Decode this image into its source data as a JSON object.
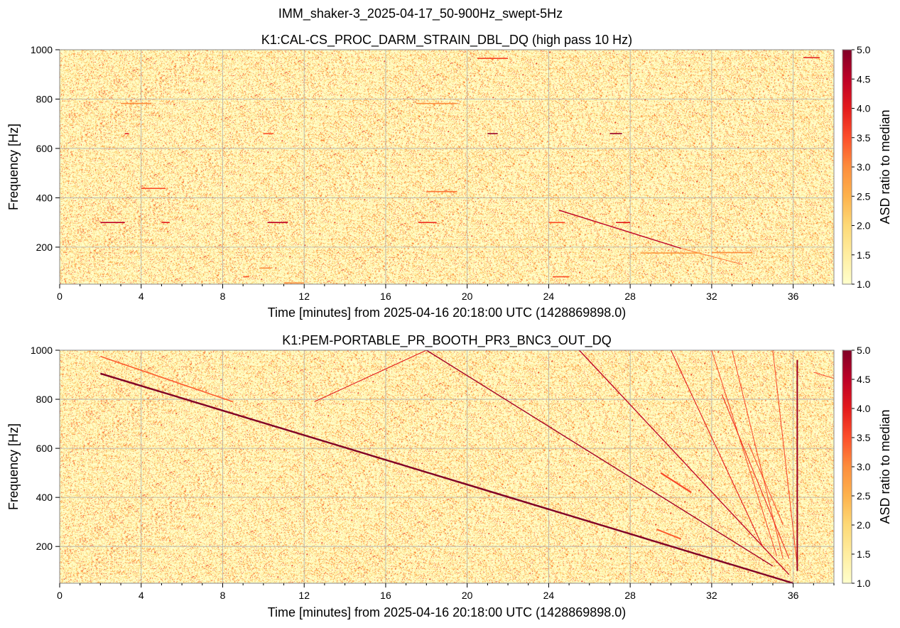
{
  "figure": {
    "suptitle": "IMM_shaker-3_2025-04-17_50-900Hz_swept-5Hz"
  },
  "chart_data": [
    {
      "type": "heatmap",
      "title": "K1:CAL-CS_PROC_DARM_STRAIN_DBL_DQ (high pass 10 Hz)",
      "xlabel": "Time [minutes] from 2025-04-16 20:18:00 UTC (1428869898.0)",
      "ylabel": "Frequency [Hz]",
      "xlim": [
        0,
        38
      ],
      "ylim": [
        50,
        1000
      ],
      "xticks": [
        0,
        4,
        8,
        12,
        16,
        20,
        24,
        28,
        32,
        36
      ],
      "yticks": [
        200,
        400,
        600,
        800,
        1000
      ],
      "grid": true,
      "colorbar": {
        "label": "ASD ratio to median",
        "range": [
          1.0,
          5.0
        ],
        "ticks": [
          1.0,
          1.5,
          2.0,
          2.5,
          3.0,
          3.5,
          4.0,
          4.5,
          5.0
        ],
        "colormap": [
          "#ffffcc",
          "#ffeda0",
          "#fed976",
          "#feb24c",
          "#fd8d3c",
          "#fc4e2a",
          "#e31a1c",
          "#bd0026",
          "#800026"
        ]
      },
      "lines": [
        {
          "t": [
            24.5,
            30.5
          ],
          "f": [
            350,
            195
          ],
          "value": 4.5,
          "width": 1.4
        },
        {
          "t": [
            30.5,
            33.5
          ],
          "f": [
            195,
            130
          ],
          "value": 3.2,
          "width": 1.0
        }
      ],
      "segments": [
        {
          "t": [
            2.0,
            3.2
          ],
          "f": 300,
          "value": 4.5
        },
        {
          "t": [
            5.0,
            5.4
          ],
          "f": 300,
          "value": 4.0
        },
        {
          "t": [
            10.2,
            11.2
          ],
          "f": 300,
          "value": 4.5
        },
        {
          "t": [
            17.6,
            18.5
          ],
          "f": 300,
          "value": 3.8
        },
        {
          "t": [
            24.0,
            24.8
          ],
          "f": 300,
          "value": 3.5
        },
        {
          "t": [
            27.3,
            28.0
          ],
          "f": 300,
          "value": 4.0
        },
        {
          "t": [
            4.0,
            5.2
          ],
          "f": 438,
          "value": 3.5
        },
        {
          "t": [
            18.0,
            19.5
          ],
          "f": 425,
          "value": 3.2
        },
        {
          "t": [
            3.0,
            4.5
          ],
          "f": 782,
          "value": 3.0
        },
        {
          "t": [
            17.5,
            19.5
          ],
          "f": 782,
          "value": 3.0
        },
        {
          "t": [
            20.5,
            22.0
          ],
          "f": 965,
          "value": 3.6
        },
        {
          "t": [
            36.5,
            37.3
          ],
          "f": 968,
          "value": 4.0
        },
        {
          "t": [
            10.0,
            10.5
          ],
          "f": 660,
          "value": 3.5
        },
        {
          "t": [
            21.0,
            21.5
          ],
          "f": 660,
          "value": 4.8
        },
        {
          "t": [
            27.0,
            27.6
          ],
          "f": 660,
          "value": 4.8
        },
        {
          "t": [
            3.2,
            3.4
          ],
          "f": 660,
          "value": 4.0
        },
        {
          "t": [
            9.8,
            10.4
          ],
          "f": 115,
          "value": 3.0
        },
        {
          "t": [
            9.0,
            9.3
          ],
          "f": 80,
          "value": 3.5
        },
        {
          "t": [
            24.2,
            25.0
          ],
          "f": 80,
          "value": 3.5
        },
        {
          "t": [
            11.0,
            12.0
          ],
          "f": 55,
          "value": 3.0
        },
        {
          "t": [
            32.0,
            34.0
          ],
          "f": 178,
          "value": 3.0
        },
        {
          "t": [
            28.5,
            31.5
          ],
          "f": 176,
          "value": 2.8
        },
        {
          "t": [
            12.8,
            13.0
          ],
          "f": 632,
          "value": 3.0
        }
      ]
    },
    {
      "type": "heatmap",
      "title": "K1:PEM-PORTABLE_PR_BOOTH_PR3_BNC3_OUT_DQ",
      "xlabel": "Time [minutes] from 2025-04-16 20:18:00 UTC (1428869898.0)",
      "ylabel": "Frequency [Hz]",
      "xlim": [
        0,
        38
      ],
      "ylim": [
        50,
        1000
      ],
      "xticks": [
        0,
        4,
        8,
        12,
        16,
        20,
        24,
        28,
        32,
        36
      ],
      "yticks": [
        200,
        400,
        600,
        800,
        1000
      ],
      "grid": true,
      "colorbar": {
        "label": "ASD ratio to median",
        "range": [
          1.0,
          5.0
        ],
        "ticks": [
          1.0,
          1.5,
          2.0,
          2.5,
          3.0,
          3.5,
          4.0,
          4.5,
          5.0
        ],
        "colormap": [
          "#ffffcc",
          "#ffeda0",
          "#fed976",
          "#feb24c",
          "#fd8d3c",
          "#fc4e2a",
          "#e31a1c",
          "#bd0026",
          "#800026"
        ]
      },
      "lines": [
        {
          "t": [
            2.0,
            36.0
          ],
          "f": [
            905,
            50
          ],
          "value": 5.0,
          "width": 2.4
        },
        {
          "t": [
            2.0,
            8.5
          ],
          "f": [
            975,
            790
          ],
          "value": 3.4,
          "width": 1.6
        },
        {
          "t": [
            12.5,
            18.0
          ],
          "f": [
            790,
            1000
          ],
          "value": 4.0,
          "width": 1.1
        },
        {
          "t": [
            18.0,
            35.0
          ],
          "f": [
            1000,
            120
          ],
          "value": 4.7,
          "width": 1.4
        },
        {
          "t": [
            25.5,
            35.8
          ],
          "f": [
            1000,
            85
          ],
          "value": 4.5,
          "width": 1.3
        },
        {
          "t": [
            30.0,
            34.5
          ],
          "f": [
            1000,
            200
          ],
          "value": 4.0,
          "width": 1.1
        },
        {
          "t": [
            32.0,
            35.2
          ],
          "f": [
            1000,
            160
          ],
          "value": 3.6,
          "width": 1.0
        },
        {
          "t": [
            33.0,
            35.5
          ],
          "f": [
            1000,
            150
          ],
          "value": 3.6,
          "width": 1.0
        },
        {
          "t": [
            32.5,
            35.8
          ],
          "f": [
            820,
            150
          ],
          "value": 3.8,
          "width": 1.1
        },
        {
          "t": [
            33.8,
            35.5
          ],
          "f": [
            620,
            290
          ],
          "value": 3.6,
          "width": 1.0
        },
        {
          "t": [
            35.0,
            36.2
          ],
          "f": [
            1000,
            120
          ],
          "value": 3.6,
          "width": 1.0
        },
        {
          "t": [
            36.2,
            36.2
          ],
          "f": [
            960,
            100
          ],
          "value": 4.8,
          "width": 2.0
        },
        {
          "t": [
            37.0,
            38.0
          ],
          "f": [
            910,
            885
          ],
          "value": 3.6,
          "width": 1.0
        },
        {
          "t": [
            29.5,
            31.0
          ],
          "f": [
            500,
            420
          ],
          "value": 3.6,
          "width": 2.2
        },
        {
          "t": [
            29.3,
            30.5
          ],
          "f": [
            270,
            230
          ],
          "value": 3.4,
          "width": 2.0
        }
      ],
      "segments": []
    }
  ]
}
